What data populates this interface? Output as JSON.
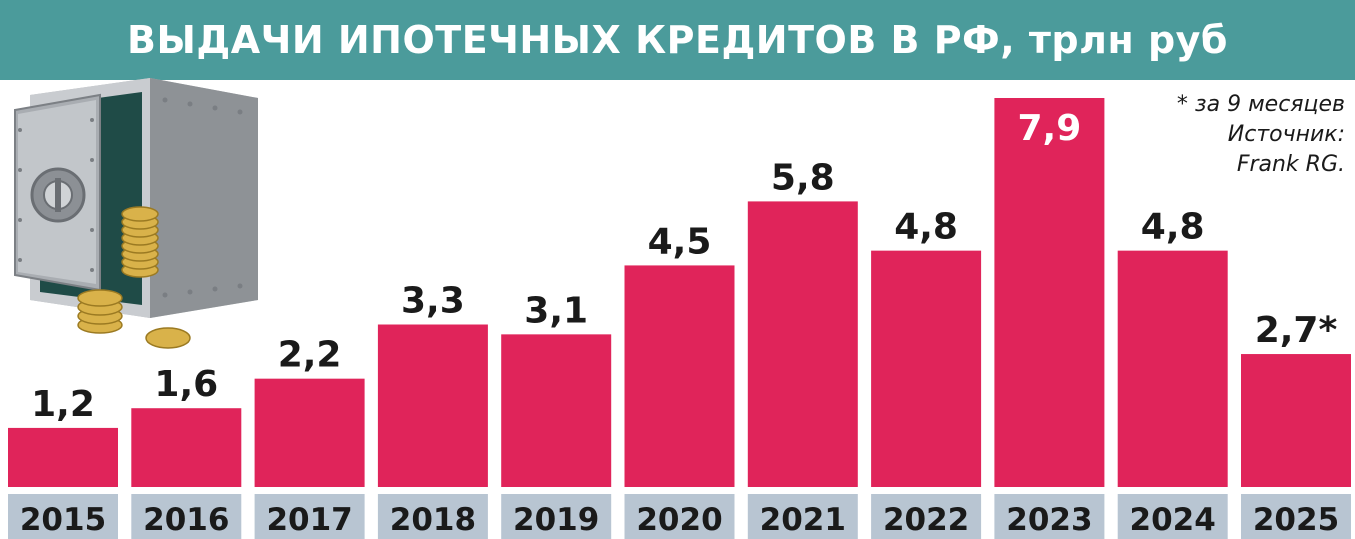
{
  "title": "ВЫДАЧИ ИПОТЕЧНЫХ КРЕДИТОВ В РФ, трлн руб",
  "note": {
    "footnote": "* за 9 месяцев",
    "source_label": "Источник:",
    "source_name": "Frank RG."
  },
  "colors": {
    "title_bg": "#4b9b9b",
    "bar": "#e0245a",
    "year_bg": "#b8c5d2",
    "highlight_label": "#ffffff"
  },
  "chart_data": {
    "type": "bar",
    "title": "ВЫДАЧИ ИПОТЕЧНЫХ КРЕДИТОВ В РФ, трлн руб",
    "categories": [
      "2015",
      "2016",
      "2017",
      "2018",
      "2019",
      "2020",
      "2021",
      "2022",
      "2023",
      "2024",
      "2025"
    ],
    "values": [
      1.2,
      1.6,
      2.2,
      3.3,
      3.1,
      4.5,
      5.8,
      4.8,
      7.9,
      4.8,
      2.7
    ],
    "labels": [
      "1,2",
      "1,6",
      "2,2",
      "3,3",
      "3,1",
      "4,5",
      "5,8",
      "4,8",
      "7,9",
      "4,8",
      "2,7*"
    ],
    "highlight_index": 8,
    "ylim": [
      0,
      7.9
    ],
    "xlabel": "",
    "ylabel": "",
    "grid": false
  }
}
